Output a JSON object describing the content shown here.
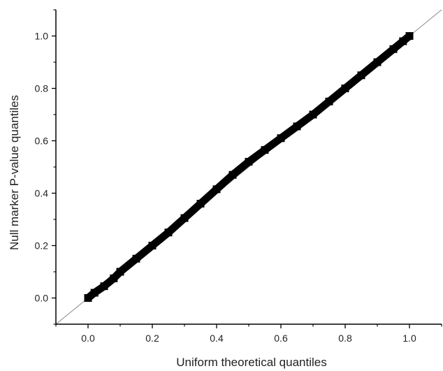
{
  "chart_data": {
    "type": "scatter",
    "title": "",
    "xlabel": "Uniform theoretical quantiles",
    "ylabel": "Null marker P-value quantiles",
    "xlim": [
      -0.1,
      1.1
    ],
    "ylim": [
      -0.1,
      1.1
    ],
    "x_ticks": [
      "0.0",
      "0.2",
      "0.4",
      "0.6",
      "0.8",
      "1.0"
    ],
    "y_ticks": [
      "0.0",
      "0.2",
      "0.4",
      "0.6",
      "0.8",
      "1.0"
    ],
    "x_tick_values": [
      0.0,
      0.2,
      0.4,
      0.6,
      0.8,
      1.0
    ],
    "y_tick_values": [
      0.0,
      0.2,
      0.4,
      0.6,
      0.8,
      1.0
    ],
    "grid": false,
    "legend": "none",
    "reference_line": {
      "slope": 1,
      "intercept": 0,
      "color": "#888888"
    },
    "series": [
      {
        "color": "#000000",
        "x": [
          0.0,
          0.02,
          0.05,
          0.08,
          0.1,
          0.15,
          0.2,
          0.25,
          0.3,
          0.35,
          0.4,
          0.45,
          0.5,
          0.55,
          0.6,
          0.65,
          0.7,
          0.75,
          0.8,
          0.85,
          0.9,
          0.95,
          0.98,
          1.0
        ],
        "y": [
          0.0,
          0.02,
          0.045,
          0.075,
          0.1,
          0.15,
          0.2,
          0.25,
          0.305,
          0.36,
          0.415,
          0.47,
          0.52,
          0.565,
          0.61,
          0.655,
          0.7,
          0.75,
          0.8,
          0.85,
          0.9,
          0.95,
          0.98,
          1.0
        ]
      }
    ]
  }
}
